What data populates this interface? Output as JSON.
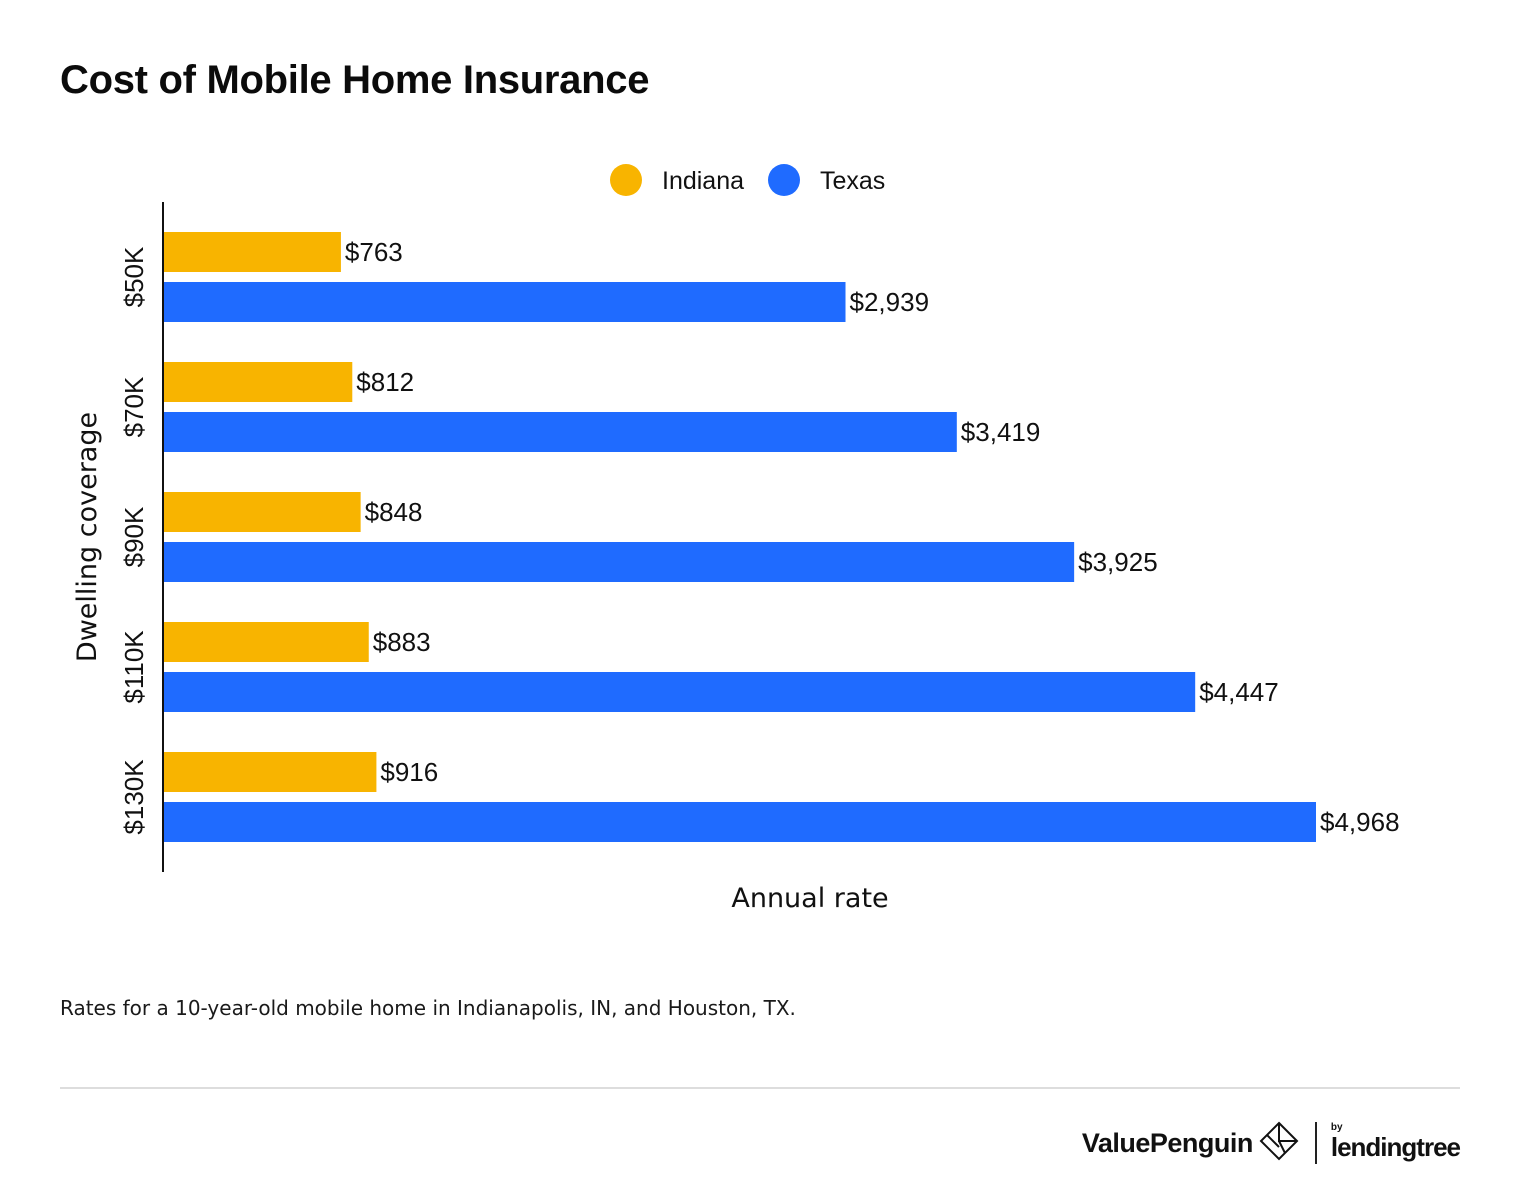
{
  "title": "Cost of Mobile Home Insurance",
  "footnote": "Rates for a 10-year-old mobile home in Indianapolis, IN, and Houston, TX.",
  "brand": {
    "valuepenguin": "ValuePenguin",
    "by": "by",
    "lendingtree": "lendingtree"
  },
  "colors": {
    "indiana": "#f8b400",
    "texas": "#1f6bff"
  },
  "chart_data": {
    "type": "bar",
    "orientation": "horizontal",
    "title": "Cost of Mobile Home Insurance",
    "xlabel": "Annual rate",
    "ylabel": "Dwelling coverage",
    "categories": [
      "$50K",
      "$70K",
      "$90K",
      "$110K",
      "$130K"
    ],
    "series": [
      {
        "name": "Indiana",
        "color": "#f8b400",
        "values": [
          763,
          812,
          848,
          883,
          916
        ],
        "labels": [
          "$763",
          "$812",
          "$848",
          "$883",
          "$916"
        ]
      },
      {
        "name": "Texas",
        "color": "#1f6bff",
        "values": [
          2939,
          3419,
          3925,
          4447,
          4968
        ],
        "labels": [
          "$2,939",
          "$3,419",
          "$3,925",
          "$4,447",
          "$4,968"
        ]
      }
    ],
    "xlim": [
      0,
      4968
    ],
    "grid": false,
    "legend_position": "top-center"
  }
}
